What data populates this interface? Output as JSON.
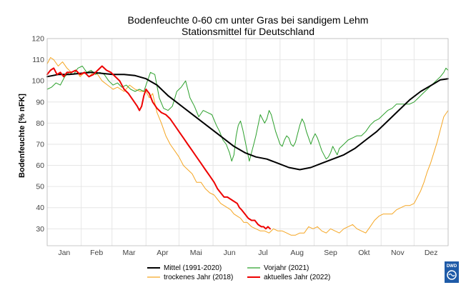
{
  "chart_data": {
    "type": "line",
    "title": "Bodenfeuchte 0-60 cm unter Gras bei sandigem Lehm",
    "subtitle": "Stationsmittel für Deutschland",
    "ylabel": "Bodenfeuchte [% nFK]",
    "xlabel": "",
    "xlim": [
      0,
      365
    ],
    "ylim": [
      22,
      120
    ],
    "yticks": [
      30,
      40,
      50,
      60,
      70,
      80,
      90,
      100,
      110,
      120
    ],
    "month_boundaries": [
      0,
      31,
      59,
      90,
      120,
      151,
      181,
      212,
      243,
      273,
      304,
      334,
      365
    ],
    "months": [
      "Jan",
      "Feb",
      "Mar",
      "Apr",
      "Mai",
      "Jun",
      "Jul",
      "Aug",
      "Sep",
      "Okt",
      "Nov",
      "Dez"
    ],
    "grid": true,
    "legend_position": "bottom",
    "series": [
      {
        "key": "mittel",
        "name": "Mittel (1991-2020)",
        "color": "#000000",
        "width": 2,
        "points": [
          [
            0,
            102
          ],
          [
            10,
            103
          ],
          [
            20,
            103
          ],
          [
            30,
            103.5
          ],
          [
            40,
            104
          ],
          [
            50,
            103.5
          ],
          [
            60,
            103
          ],
          [
            70,
            103
          ],
          [
            80,
            102.5
          ],
          [
            90,
            101
          ],
          [
            100,
            98
          ],
          [
            110,
            93
          ],
          [
            120,
            89
          ],
          [
            130,
            85
          ],
          [
            140,
            81
          ],
          [
            150,
            77
          ],
          [
            160,
            73
          ],
          [
            170,
            69
          ],
          [
            180,
            66
          ],
          [
            190,
            64
          ],
          [
            200,
            63
          ],
          [
            210,
            61
          ],
          [
            220,
            59
          ],
          [
            230,
            58
          ],
          [
            240,
            59
          ],
          [
            250,
            61
          ],
          [
            260,
            63
          ],
          [
            270,
            65
          ],
          [
            280,
            68
          ],
          [
            290,
            72
          ],
          [
            300,
            76
          ],
          [
            310,
            81
          ],
          [
            320,
            86
          ],
          [
            330,
            91
          ],
          [
            340,
            95
          ],
          [
            350,
            98
          ],
          [
            358,
            100.5
          ],
          [
            365,
            101
          ]
        ]
      },
      {
        "key": "trocken",
        "name": "trockenes Jahr (2018)",
        "color": "#f5a623",
        "width": 1,
        "points": [
          [
            0,
            108
          ],
          [
            3,
            111
          ],
          [
            6,
            110
          ],
          [
            10,
            107
          ],
          [
            14,
            109
          ],
          [
            18,
            106
          ],
          [
            22,
            104
          ],
          [
            26,
            105
          ],
          [
            30,
            102
          ],
          [
            34,
            104
          ],
          [
            38,
            102
          ],
          [
            42,
            104
          ],
          [
            46,
            103
          ],
          [
            50,
            100
          ],
          [
            55,
            98
          ],
          [
            60,
            96
          ],
          [
            64,
            97
          ],
          [
            70,
            95
          ],
          [
            75,
            98
          ],
          [
            80,
            96
          ],
          [
            85,
            95
          ],
          [
            90,
            95
          ],
          [
            93,
            92
          ],
          [
            96,
            94
          ],
          [
            100,
            85
          ],
          [
            104,
            80
          ],
          [
            108,
            74
          ],
          [
            112,
            70
          ],
          [
            116,
            67
          ],
          [
            120,
            64
          ],
          [
            124,
            60
          ],
          [
            128,
            58
          ],
          [
            132,
            56
          ],
          [
            136,
            52
          ],
          [
            140,
            52
          ],
          [
            144,
            49
          ],
          [
            148,
            47
          ],
          [
            152,
            46
          ],
          [
            155,
            44
          ],
          [
            158,
            42
          ],
          [
            161,
            41
          ],
          [
            164,
            40
          ],
          [
            167,
            39
          ],
          [
            170,
            37
          ],
          [
            173,
            36
          ],
          [
            176,
            35
          ],
          [
            179,
            33
          ],
          [
            182,
            33
          ],
          [
            186,
            31
          ],
          [
            190,
            30
          ],
          [
            194,
            29
          ],
          [
            198,
            29
          ],
          [
            202,
            28
          ],
          [
            206,
            30
          ],
          [
            210,
            29
          ],
          [
            214,
            29
          ],
          [
            218,
            28
          ],
          [
            222,
            27
          ],
          [
            226,
            27
          ],
          [
            230,
            28
          ],
          [
            234,
            28
          ],
          [
            238,
            31
          ],
          [
            242,
            30
          ],
          [
            246,
            31
          ],
          [
            250,
            29
          ],
          [
            254,
            28
          ],
          [
            258,
            30
          ],
          [
            262,
            29
          ],
          [
            266,
            28
          ],
          [
            270,
            30
          ],
          [
            274,
            31
          ],
          [
            278,
            32
          ],
          [
            282,
            30
          ],
          [
            286,
            29
          ],
          [
            290,
            28
          ],
          [
            294,
            31
          ],
          [
            298,
            34
          ],
          [
            302,
            36
          ],
          [
            306,
            37
          ],
          [
            310,
            37
          ],
          [
            314,
            37
          ],
          [
            318,
            39
          ],
          [
            322,
            40
          ],
          [
            326,
            41
          ],
          [
            330,
            41
          ],
          [
            334,
            42
          ],
          [
            337,
            45
          ],
          [
            340,
            48
          ],
          [
            343,
            52
          ],
          [
            346,
            57
          ],
          [
            349,
            61
          ],
          [
            352,
            66
          ],
          [
            355,
            71
          ],
          [
            358,
            77
          ],
          [
            361,
            83
          ],
          [
            365,
            86
          ]
        ]
      },
      {
        "key": "vorjahr",
        "name": "Vorjahr (2021)",
        "color": "#2ca02c",
        "width": 1,
        "points": [
          [
            0,
            96
          ],
          [
            4,
            97
          ],
          [
            8,
            99
          ],
          [
            12,
            98
          ],
          [
            16,
            102
          ],
          [
            20,
            104
          ],
          [
            24,
            103
          ],
          [
            28,
            106
          ],
          [
            32,
            107
          ],
          [
            36,
            104
          ],
          [
            40,
            105
          ],
          [
            44,
            103
          ],
          [
            48,
            104
          ],
          [
            52,
            103
          ],
          [
            56,
            100
          ],
          [
            60,
            98
          ],
          [
            64,
            99
          ],
          [
            68,
            97
          ],
          [
            72,
            98
          ],
          [
            76,
            96
          ],
          [
            80,
            95
          ],
          [
            84,
            96
          ],
          [
            88,
            95
          ],
          [
            90,
            98
          ],
          [
            94,
            104
          ],
          [
            98,
            103
          ],
          [
            102,
            92
          ],
          [
            106,
            87
          ],
          [
            110,
            86
          ],
          [
            114,
            88
          ],
          [
            118,
            95
          ],
          [
            122,
            97
          ],
          [
            126,
            100
          ],
          [
            130,
            92
          ],
          [
            134,
            88
          ],
          [
            138,
            83
          ],
          [
            142,
            86
          ],
          [
            146,
            85
          ],
          [
            150,
            84
          ],
          [
            154,
            79
          ],
          [
            157,
            76
          ],
          [
            160,
            72
          ],
          [
            163,
            70
          ],
          [
            166,
            66
          ],
          [
            168,
            62
          ],
          [
            170,
            65
          ],
          [
            172,
            74
          ],
          [
            174,
            79
          ],
          [
            176,
            81
          ],
          [
            178,
            77
          ],
          [
            180,
            72
          ],
          [
            182,
            67
          ],
          [
            184,
            62
          ],
          [
            186,
            66
          ],
          [
            188,
            70
          ],
          [
            190,
            74
          ],
          [
            192,
            79
          ],
          [
            194,
            84
          ],
          [
            196,
            82
          ],
          [
            198,
            80
          ],
          [
            200,
            82
          ],
          [
            202,
            86
          ],
          [
            204,
            84
          ],
          [
            206,
            80
          ],
          [
            208,
            76
          ],
          [
            210,
            73
          ],
          [
            212,
            70
          ],
          [
            214,
            69
          ],
          [
            216,
            72
          ],
          [
            218,
            74
          ],
          [
            220,
            73
          ],
          [
            222,
            70
          ],
          [
            224,
            69
          ],
          [
            226,
            71
          ],
          [
            228,
            75
          ],
          [
            230,
            79
          ],
          [
            232,
            82
          ],
          [
            234,
            80
          ],
          [
            236,
            76
          ],
          [
            238,
            73
          ],
          [
            240,
            70
          ],
          [
            242,
            73
          ],
          [
            244,
            75
          ],
          [
            246,
            73
          ],
          [
            248,
            70
          ],
          [
            250,
            67
          ],
          [
            252,
            65
          ],
          [
            254,
            63
          ],
          [
            256,
            64
          ],
          [
            258,
            66
          ],
          [
            260,
            69
          ],
          [
            262,
            67
          ],
          [
            264,
            65
          ],
          [
            266,
            68
          ],
          [
            270,
            70
          ],
          [
            274,
            72
          ],
          [
            278,
            73
          ],
          [
            282,
            74
          ],
          [
            286,
            74
          ],
          [
            290,
            76
          ],
          [
            294,
            79
          ],
          [
            298,
            81
          ],
          [
            302,
            82
          ],
          [
            306,
            84
          ],
          [
            310,
            86
          ],
          [
            314,
            87
          ],
          [
            318,
            89
          ],
          [
            322,
            89
          ],
          [
            326,
            89
          ],
          [
            330,
            89
          ],
          [
            334,
            90
          ],
          [
            338,
            92
          ],
          [
            342,
            94
          ],
          [
            346,
            96
          ],
          [
            350,
            98
          ],
          [
            354,
            100
          ],
          [
            358,
            102
          ],
          [
            361,
            104
          ],
          [
            363,
            106
          ],
          [
            365,
            105
          ]
        ]
      },
      {
        "key": "aktuell",
        "name": "aktuelles Jahr (2022)",
        "color": "#ee0000",
        "width": 2,
        "points": [
          [
            0,
            103
          ],
          [
            3,
            105
          ],
          [
            6,
            106
          ],
          [
            9,
            103
          ],
          [
            12,
            104
          ],
          [
            15,
            102
          ],
          [
            18,
            104
          ],
          [
            22,
            104
          ],
          [
            26,
            105
          ],
          [
            30,
            103
          ],
          [
            34,
            104
          ],
          [
            38,
            102
          ],
          [
            42,
            103
          ],
          [
            46,
            105
          ],
          [
            50,
            107
          ],
          [
            54,
            105
          ],
          [
            58,
            104
          ],
          [
            62,
            102
          ],
          [
            66,
            100
          ],
          [
            70,
            96
          ],
          [
            74,
            94
          ],
          [
            78,
            91
          ],
          [
            82,
            88
          ],
          [
            84,
            86
          ],
          [
            86,
            88
          ],
          [
            88,
            93
          ],
          [
            90,
            96
          ],
          [
            93,
            94
          ],
          [
            96,
            90
          ],
          [
            100,
            87
          ],
          [
            104,
            85
          ],
          [
            108,
            84
          ],
          [
            112,
            82
          ],
          [
            116,
            79
          ],
          [
            120,
            76
          ],
          [
            124,
            73
          ],
          [
            128,
            70
          ],
          [
            132,
            67
          ],
          [
            136,
            64
          ],
          [
            140,
            61
          ],
          [
            144,
            58
          ],
          [
            148,
            55
          ],
          [
            152,
            52
          ],
          [
            155,
            49
          ],
          [
            158,
            47
          ],
          [
            161,
            45
          ],
          [
            164,
            45
          ],
          [
            167,
            44
          ],
          [
            170,
            43
          ],
          [
            173,
            42
          ],
          [
            175,
            40
          ],
          [
            177,
            39
          ],
          [
            180,
            37
          ],
          [
            183,
            35
          ],
          [
            186,
            34
          ],
          [
            189,
            34
          ],
          [
            192,
            32
          ],
          [
            195,
            31
          ],
          [
            197,
            31
          ],
          [
            199,
            30
          ],
          [
            201,
            31
          ],
          [
            203,
            30
          ]
        ]
      }
    ]
  },
  "legend": {
    "items": [
      {
        "key": "mittel",
        "label": "Mittel (1991-2020)"
      },
      {
        "key": "trocken",
        "label": "trockenes Jahr (2018)"
      },
      {
        "key": "vorjahr",
        "label": "Vorjahr (2021)"
      },
      {
        "key": "aktuell",
        "label": "aktuelles Jahr (2022)"
      }
    ]
  },
  "logo": {
    "text": "DWD"
  }
}
